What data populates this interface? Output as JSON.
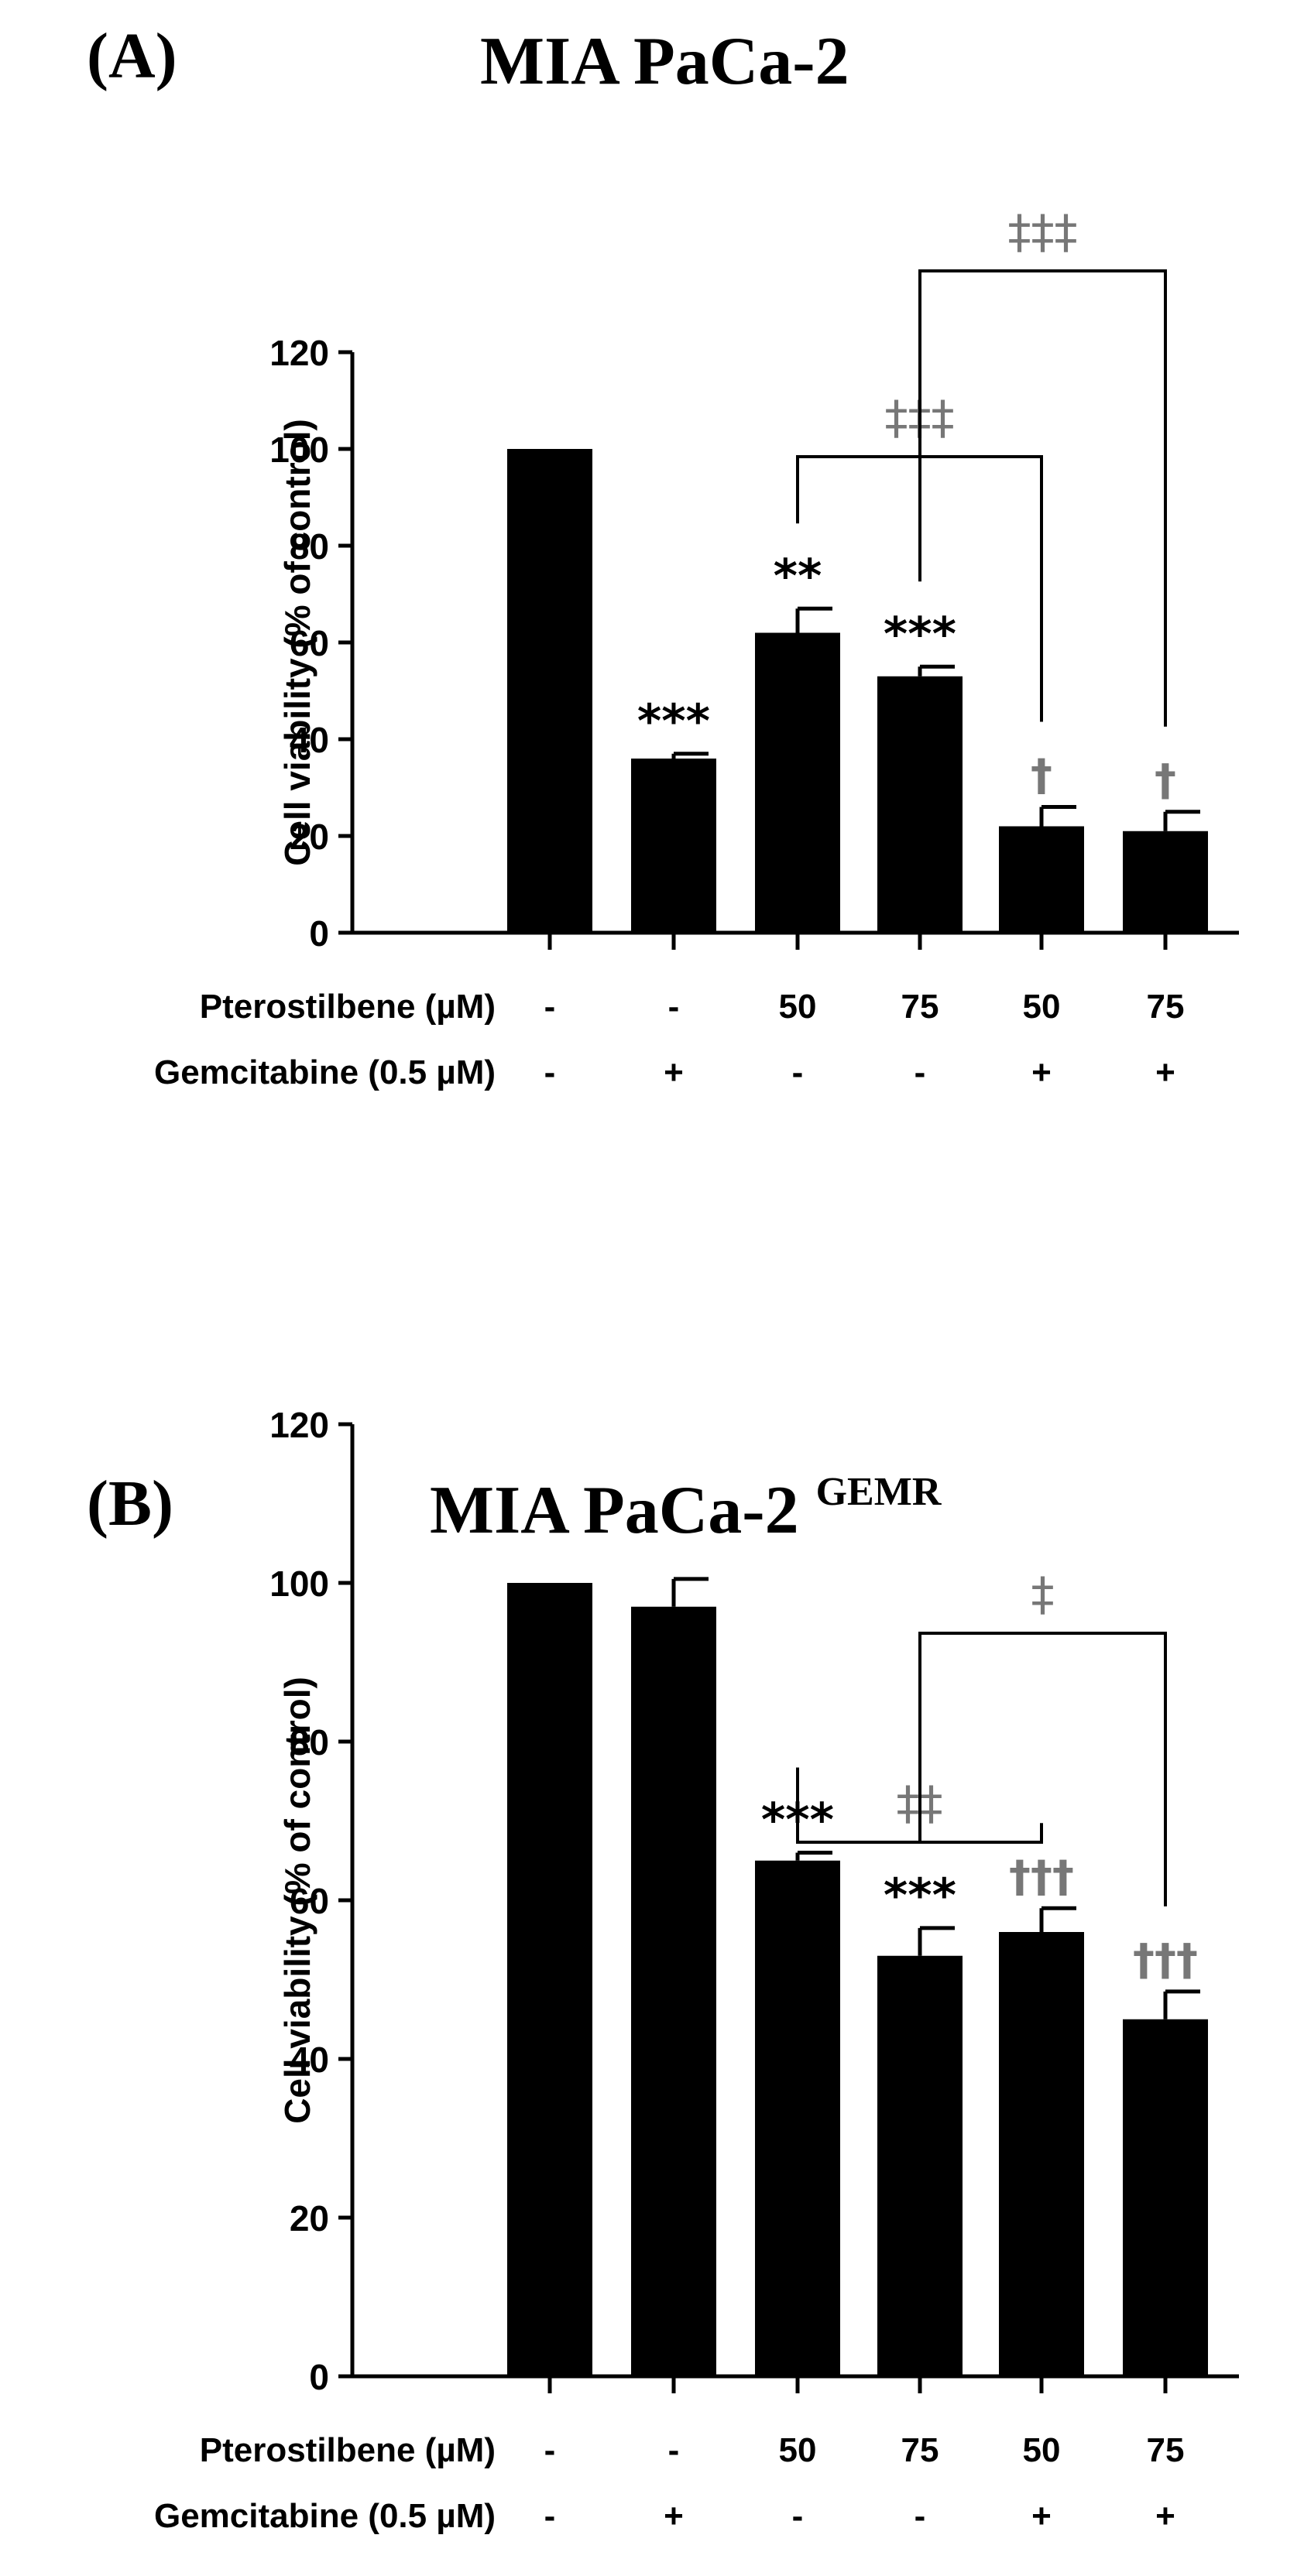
{
  "chart_data": [
    {
      "type": "bar",
      "panel_label": "(A)",
      "title": "MIA PaCa-2",
      "title_superscript": "",
      "ylabel": "Cell viability (% of control)",
      "ylim": [
        0,
        120
      ],
      "yticks": [
        0,
        20,
        40,
        60,
        80,
        100,
        120
      ],
      "categories": [
        "1",
        "2",
        "3",
        "4",
        "5",
        "6"
      ],
      "values": [
        100,
        36,
        62,
        53,
        22,
        21
      ],
      "errors": [
        0,
        1,
        5,
        2,
        4,
        4
      ],
      "significance": [
        "",
        "***",
        "**",
        "***",
        "†",
        "†"
      ],
      "treatment_rows": [
        {
          "label": "Pterostilbene (µM)",
          "values": [
            "-",
            "-",
            "50",
            "75",
            "50",
            "75"
          ]
        },
        {
          "label": "Gemcitabine (0.5 µM)",
          "values": [
            "-",
            "+",
            "-",
            "-",
            "+",
            "+"
          ]
        }
      ],
      "brackets": [
        {
          "from": 2,
          "to": 4,
          "label": "‡‡‡"
        },
        {
          "from": 3,
          "to": 5,
          "label": "‡‡‡"
        }
      ]
    },
    {
      "type": "bar",
      "panel_label": "(B)",
      "title": "MIA PaCa-2",
      "title_superscript": "GEMR",
      "ylabel": "Cell viability (% of control)",
      "ylim": [
        0,
        120
      ],
      "yticks": [
        0,
        20,
        40,
        60,
        80,
        100,
        120
      ],
      "categories": [
        "1",
        "2",
        "3",
        "4",
        "5",
        "6"
      ],
      "values": [
        100,
        97,
        65,
        53,
        56,
        45
      ],
      "errors": [
        0,
        3.5,
        1,
        3.5,
        3,
        3.5
      ],
      "significance": [
        "",
        "",
        "***",
        "***",
        "†††",
        "†††"
      ],
      "treatment_rows": [
        {
          "label": "Pterostilbene (µM)",
          "values": [
            "-",
            "-",
            "50",
            "75",
            "50",
            "75"
          ]
        },
        {
          "label": "Gemcitabine (0.5 µM)",
          "values": [
            "-",
            "+",
            "-",
            "-",
            "+",
            "+"
          ]
        }
      ],
      "brackets": [
        {
          "from": 2,
          "to": 4,
          "label": "‡‡"
        },
        {
          "from": 3,
          "to": 5,
          "label": "‡"
        }
      ]
    }
  ]
}
